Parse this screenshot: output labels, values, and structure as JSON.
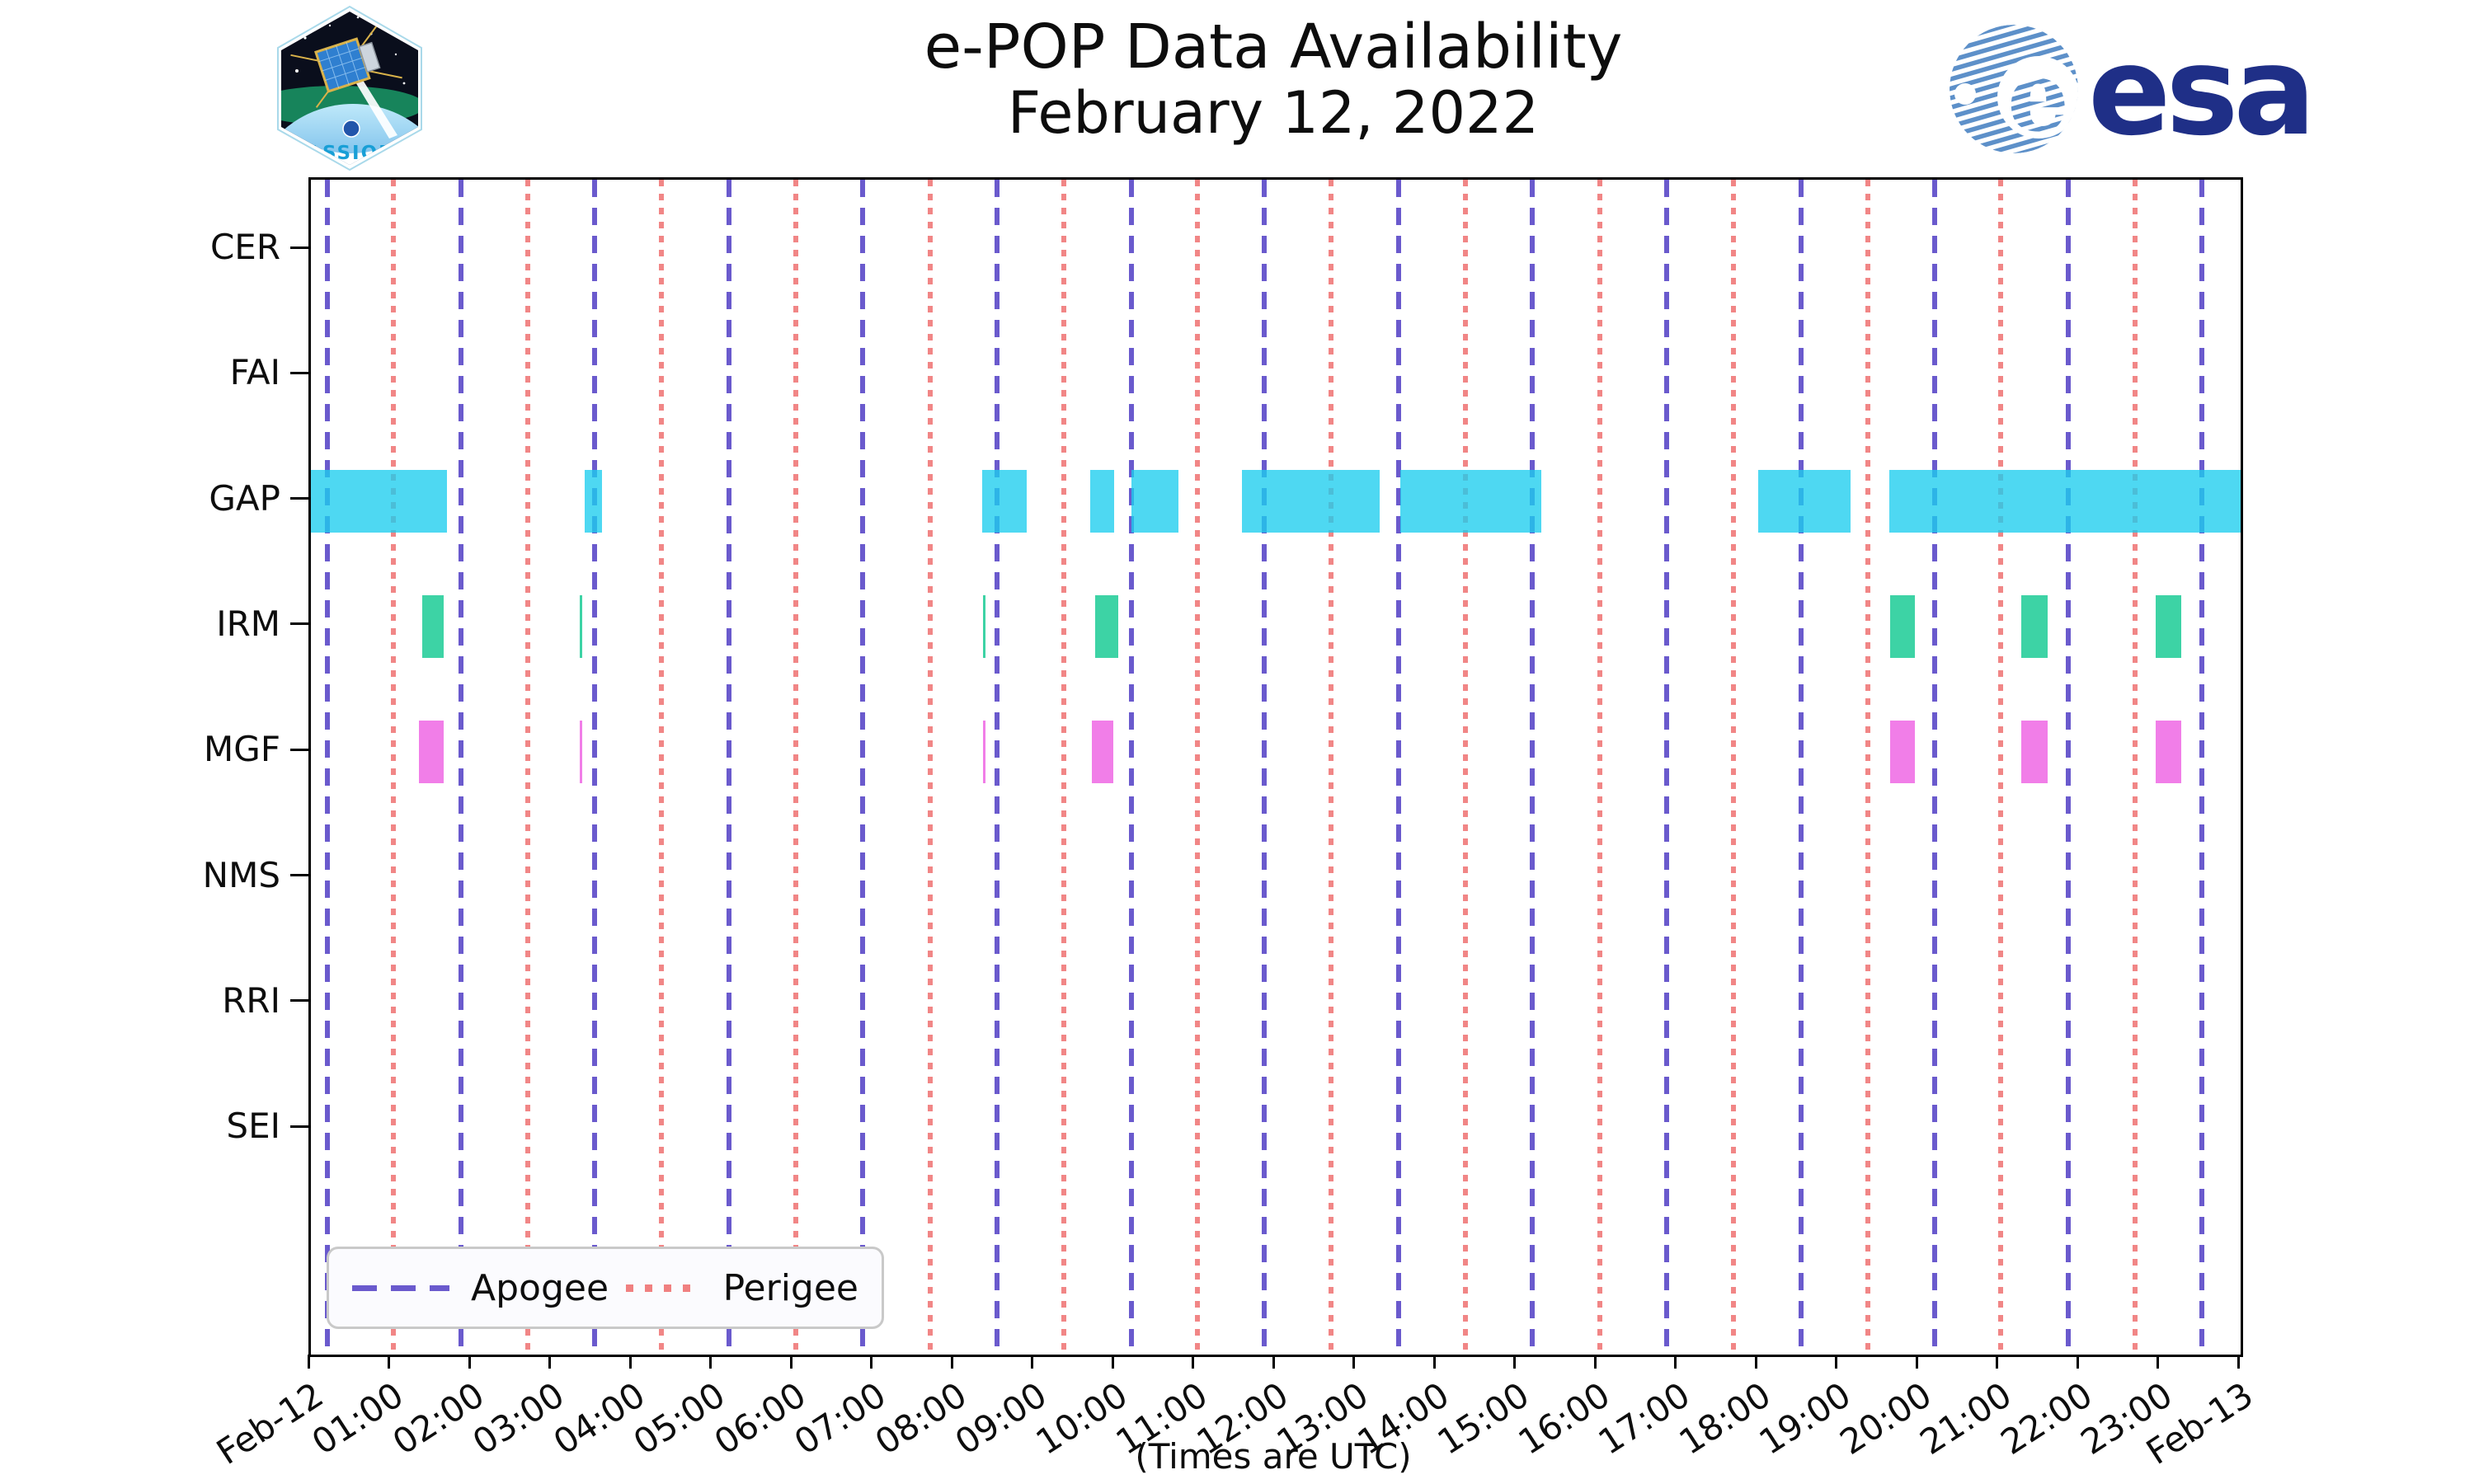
{
  "page": {
    "background": "#ffffff"
  },
  "header": {
    "title": "e-POP Data Availability",
    "date": "February 12, 2022"
  },
  "branding": {
    "cassiope": {
      "label": "CASSIOPE"
    },
    "esa": {
      "label": "esa",
      "wordmark_color": "#1f2f87",
      "globe_stripe_color": "#5d90c9"
    }
  },
  "legend": {
    "apogee_label": "Apogee",
    "perigee_label": "Perigee"
  },
  "axis": {
    "footnote": "(Times are UTC)"
  },
  "chart_data": {
    "type": "availability-gantt",
    "title": "e-POP Data Availability",
    "subtitle": "February 12, 2022",
    "x_axis": {
      "unit": "hours (UTC)",
      "range_hours": [
        0,
        24
      ],
      "tick_labels": [
        "Feb-12",
        "01:00",
        "02:00",
        "03:00",
        "04:00",
        "05:00",
        "06:00",
        "07:00",
        "08:00",
        "09:00",
        "10:00",
        "11:00",
        "12:00",
        "13:00",
        "14:00",
        "15:00",
        "16:00",
        "17:00",
        "18:00",
        "19:00",
        "20:00",
        "21:00",
        "22:00",
        "23:00",
        "Feb-13"
      ],
      "footnote": "(Times are UTC)"
    },
    "y_categories": [
      "CER",
      "FAI",
      "GAP",
      "IRM",
      "MGF",
      "NMS",
      "RRI",
      "SEI"
    ],
    "orbit_markers": {
      "apogee": {
        "label": "Apogee",
        "color": "#6a5acd",
        "style": "dashed",
        "hours": [
          0.2,
          1.87,
          3.53,
          5.2,
          6.86,
          8.53,
          10.2,
          11.86,
          13.53,
          15.19,
          16.86,
          18.53,
          20.19,
          21.86,
          23.52
        ]
      },
      "perigee": {
        "label": "Perigee",
        "color": "#f08080",
        "style": "dotted",
        "hours": [
          1.03,
          2.7,
          4.36,
          6.03,
          7.7,
          9.36,
          11.03,
          12.69,
          14.36,
          16.03,
          17.69,
          19.36,
          21.02,
          22.69
        ]
      }
    },
    "availability": [
      {
        "instrument": "GAP",
        "color": "#4ed8f2",
        "intervals": [
          [
            0.0,
            1.69
          ],
          [
            3.41,
            3.62
          ],
          [
            8.35,
            8.9
          ],
          [
            9.69,
            9.99
          ],
          [
            10.2,
            10.79
          ],
          [
            11.58,
            13.29
          ],
          [
            13.55,
            15.3
          ],
          [
            18.0,
            19.15
          ],
          [
            19.63,
            24.0
          ]
        ]
      },
      {
        "instrument": "IRM",
        "color": "#3dd3a5",
        "intervals": [
          [
            1.38,
            1.65
          ],
          [
            3.34,
            3.37
          ],
          [
            8.36,
            8.39
          ],
          [
            9.75,
            10.04
          ],
          [
            19.64,
            19.95
          ],
          [
            21.27,
            21.6
          ],
          [
            22.94,
            23.26
          ]
        ]
      },
      {
        "instrument": "MGF",
        "color": "#f17ee8",
        "intervals": [
          [
            1.34,
            1.65
          ],
          [
            3.34,
            3.37
          ],
          [
            8.36,
            8.39
          ],
          [
            9.71,
            9.98
          ],
          [
            19.64,
            19.95
          ],
          [
            21.27,
            21.6
          ],
          [
            22.94,
            23.26
          ]
        ]
      }
    ],
    "layout_hints": {
      "grid": "off",
      "legend_position": "lower-left",
      "bar_alpha": 0.78
    }
  }
}
